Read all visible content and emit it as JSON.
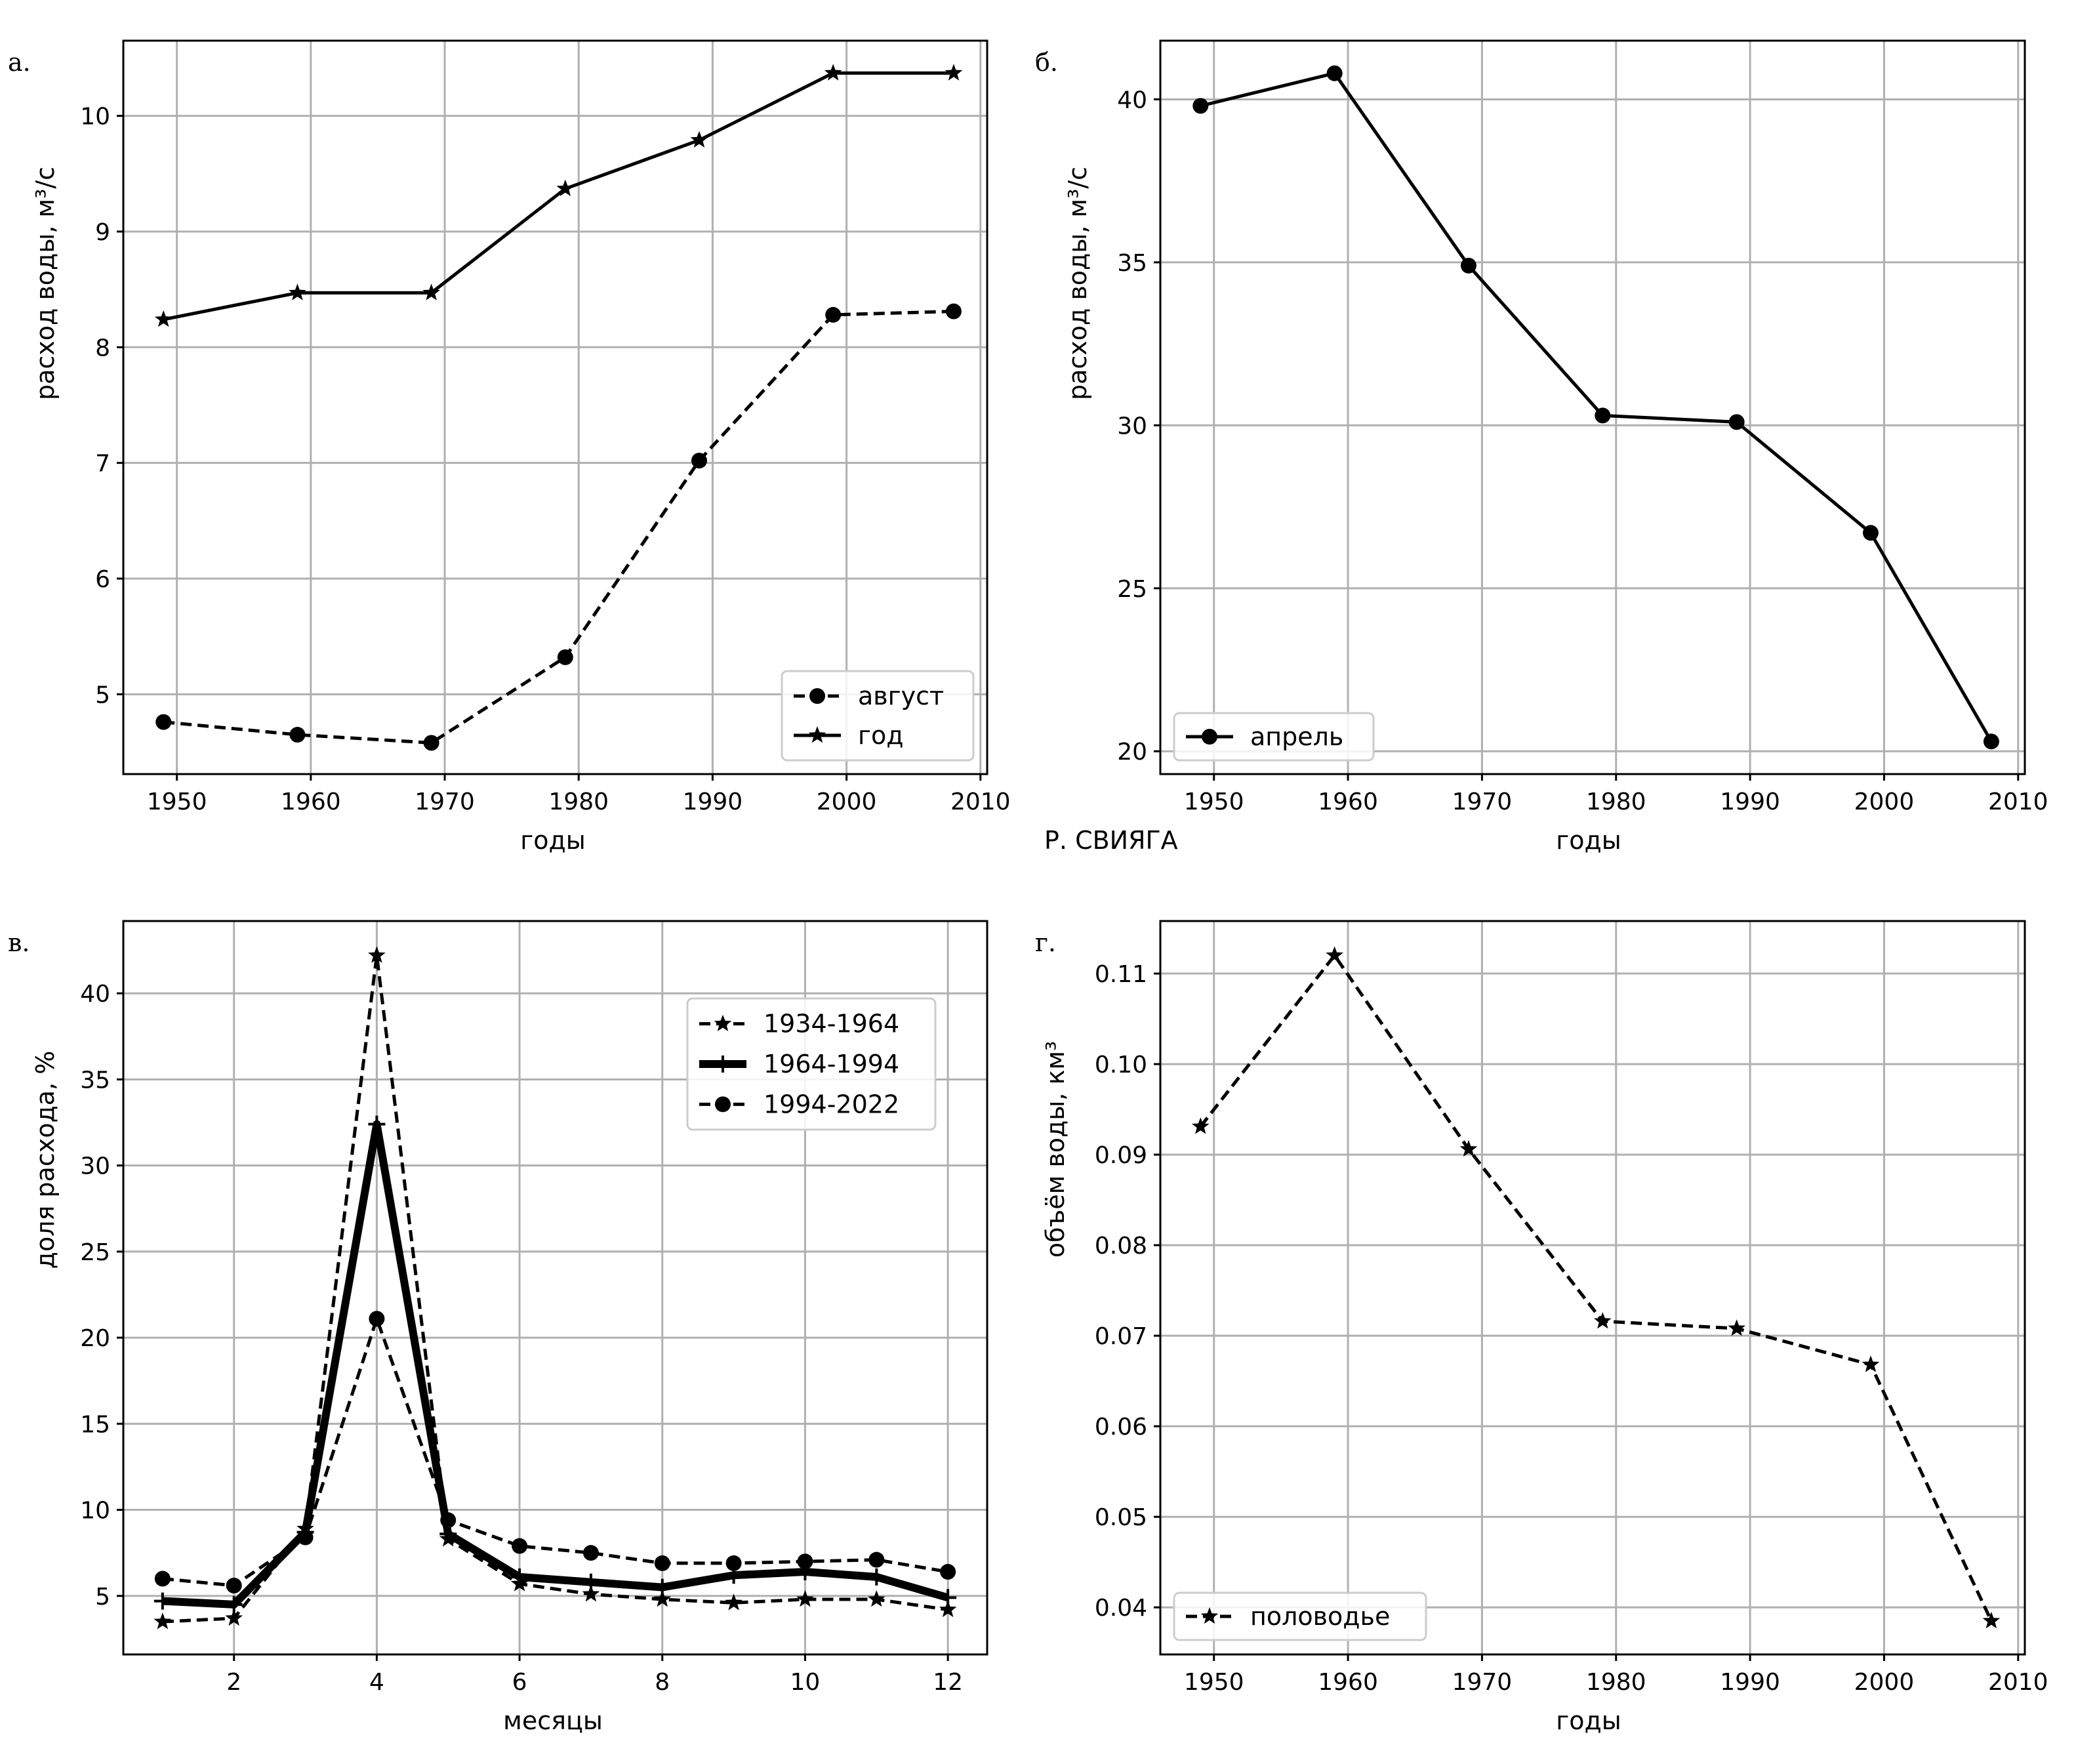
{
  "colors": {
    "line": "#000000",
    "grid": "#b0b0b0",
    "background": "#ffffff"
  },
  "chart_data": [
    {
      "id": "a",
      "panel_label": "а.",
      "type": "line",
      "x": [
        1949,
        1959,
        1969,
        1979,
        1989,
        1999,
        2008
      ],
      "series": [
        {
          "name": "август",
          "style": "dashed",
          "marker": "circle",
          "linewidth": "normal",
          "values": [
            4.76,
            4.65,
            4.58,
            5.32,
            7.02,
            8.28,
            8.31
          ]
        },
        {
          "name": "год",
          "style": "solid",
          "marker": "star",
          "linewidth": "normal",
          "values": [
            8.24,
            8.47,
            8.47,
            9.37,
            9.79,
            10.37,
            10.37
          ]
        }
      ],
      "xlabel": "годы",
      "ylabel": "расход воды, м³/с",
      "xlim": [
        1946,
        2010.5
      ],
      "ylim": [
        4.31,
        10.65
      ],
      "xticks": [
        1950,
        1960,
        1970,
        1980,
        1990,
        2000,
        2010
      ],
      "yticks": [
        5,
        6,
        7,
        8,
        9,
        10
      ],
      "legend": "bottom-right",
      "grid": true
    },
    {
      "id": "b",
      "panel_label": "б.",
      "type": "line",
      "x": [
        1949,
        1959,
        1969,
        1979,
        1989,
        1999,
        2008
      ],
      "series": [
        {
          "name": "апрель",
          "style": "solid",
          "marker": "circle",
          "linewidth": "normal",
          "values": [
            39.8,
            40.8,
            34.9,
            30.3,
            30.1,
            26.7,
            20.3
          ]
        }
      ],
      "xlabel": "годы",
      "ylabel": "расход воды, м³/с",
      "xlim": [
        1946,
        2010.5
      ],
      "ylim": [
        19.3,
        41.8
      ],
      "xticks": [
        1950,
        1960,
        1970,
        1980,
        1990,
        2000,
        2010
      ],
      "yticks": [
        20,
        25,
        30,
        35,
        40
      ],
      "legend": "bottom-left",
      "grid": true
    },
    {
      "id": "c",
      "panel_label": "в.",
      "type": "line",
      "x": [
        1,
        2,
        3,
        4,
        5,
        6,
        7,
        8,
        9,
        10,
        11,
        12
      ],
      "series": [
        {
          "name": "1934-1964",
          "style": "dashed",
          "marker": "star",
          "linewidth": "normal",
          "values": [
            3.5,
            3.7,
            8.9,
            42.2,
            8.3,
            5.7,
            5.1,
            4.8,
            4.6,
            4.8,
            4.8,
            4.2
          ]
        },
        {
          "name": "1964-1994",
          "style": "solid",
          "marker": "plus",
          "linewidth": "thick",
          "values": [
            4.7,
            4.5,
            8.7,
            32.4,
            8.6,
            6.1,
            5.8,
            5.5,
            6.2,
            6.4,
            6.1,
            4.9
          ]
        },
        {
          "name": "1994-2022",
          "style": "dashed",
          "marker": "circle",
          "linewidth": "normal",
          "values": [
            6.0,
            5.6,
            8.4,
            21.1,
            9.4,
            7.9,
            7.5,
            6.9,
            6.9,
            7.0,
            7.1,
            6.4
          ]
        }
      ],
      "xlabel": "месяцы",
      "ylabel": "доля расхода, %",
      "xlim": [
        0.45,
        12.55
      ],
      "ylim": [
        1.6,
        44.2
      ],
      "xticks": [
        2,
        4,
        6,
        8,
        10,
        12
      ],
      "yticks": [
        5,
        10,
        15,
        20,
        25,
        30,
        35,
        40
      ],
      "legend": "top-right",
      "grid": true
    },
    {
      "id": "d",
      "panel_label": "г.",
      "type": "line",
      "x": [
        1949,
        1959,
        1969,
        1979,
        1989,
        1999,
        2008
      ],
      "series": [
        {
          "name": "половодье",
          "style": "dashed",
          "marker": "star",
          "linewidth": "normal",
          "values": [
            0.0931,
            0.112,
            0.0906,
            0.0716,
            0.0708,
            0.0668,
            0.0385
          ]
        }
      ],
      "xlabel": "годы",
      "ylabel": "объём воды, км³",
      "xlim": [
        1946,
        2010.5
      ],
      "ylim": [
        0.0348,
        0.1158
      ],
      "xticks": [
        1950,
        1960,
        1970,
        1980,
        1990,
        2000,
        2010
      ],
      "yticks": [
        "0.04",
        "0.05",
        "0.06",
        "0.07",
        "0.08",
        "0.09",
        "0.10",
        "0.11"
      ],
      "legend": "bottom-left",
      "grid": true
    }
  ],
  "footer": {
    "river": "Р. СВИЯГА"
  }
}
